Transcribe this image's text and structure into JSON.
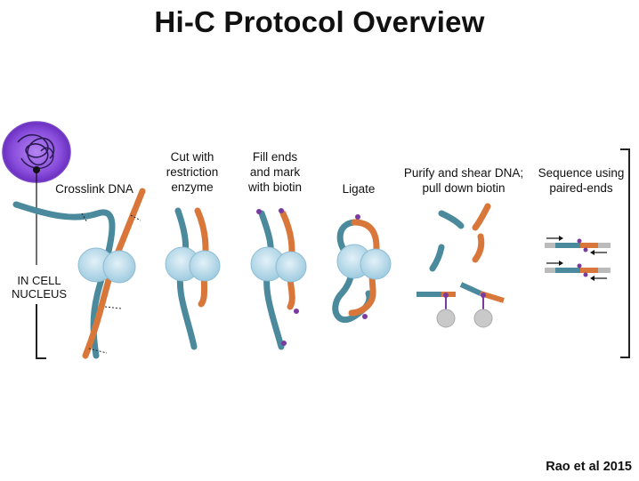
{
  "title": "Hi-C Protocol Overview",
  "side_label": "IN CELL\nNUCLEUS",
  "steps": [
    {
      "label": "Crosslink DNA"
    },
    {
      "label": "Cut with\nrestriction\nenzyme"
    },
    {
      "label": "Fill ends\nand mark\nwith biotin"
    },
    {
      "label": "Ligate"
    },
    {
      "label": "Purify and shear DNA;\npull down biotin"
    },
    {
      "label": "Sequence using\npaired-ends"
    }
  ],
  "citation": "Rao et al 2015",
  "colors": {
    "strand_teal": "#4a8a9c",
    "strand_orange": "#d9773a",
    "protein": "#b9dcec",
    "biotin": "#7b3aa0",
    "bead": "#c9c9c9",
    "nucleus": "#9b5fe0"
  }
}
